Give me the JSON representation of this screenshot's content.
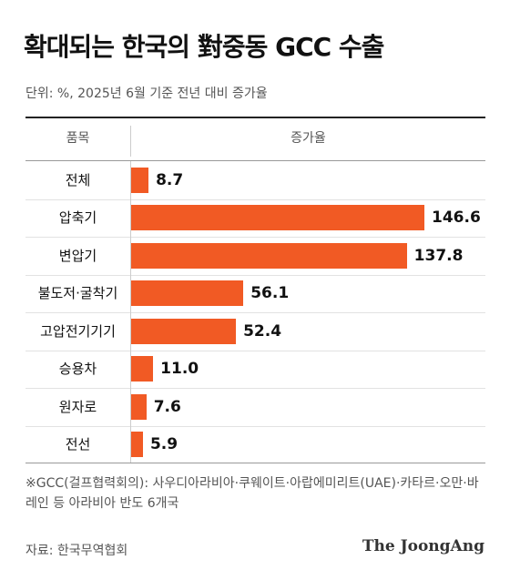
{
  "title": "확대되는 한국의 對중동 GCC 수출",
  "subtitle": "단위: %, 2025년 6월 기준 전년 대비 증가율",
  "header": {
    "col_item": "품목",
    "col_value": "증가율"
  },
  "footnote": "※GCC(걸프협력회의): 사우디아라비아·쿠웨이트·아랍에미리트(UAE)·카타르·오만·바레인 등 아라비아 반도 6개국",
  "source": "자료: 한국무역협회",
  "logo": "The JoongAng",
  "colors": {
    "bar": "#f15a24",
    "text": "#111111"
  },
  "chart_data": {
    "type": "bar",
    "orientation": "horizontal",
    "title": "확대되는 한국의 對중동 GCC 수출",
    "subtitle": "단위: %, 2025년 6월 기준 전년 대비 증가율",
    "categories": [
      "전체",
      "압축기",
      "변압기",
      "불도저·굴착기",
      "고압전기기기",
      "승용차",
      "원자로",
      "전선"
    ],
    "values": [
      8.7,
      146.6,
      137.8,
      56.1,
      52.4,
      11.0,
      7.6,
      5.9
    ],
    "value_labels": [
      "8.7",
      "146.6",
      "137.8",
      "56.1",
      "52.4",
      "11.0",
      "7.6",
      "5.9"
    ],
    "xlim": [
      0,
      146.6
    ],
    "grid": false,
    "legend": "none"
  }
}
